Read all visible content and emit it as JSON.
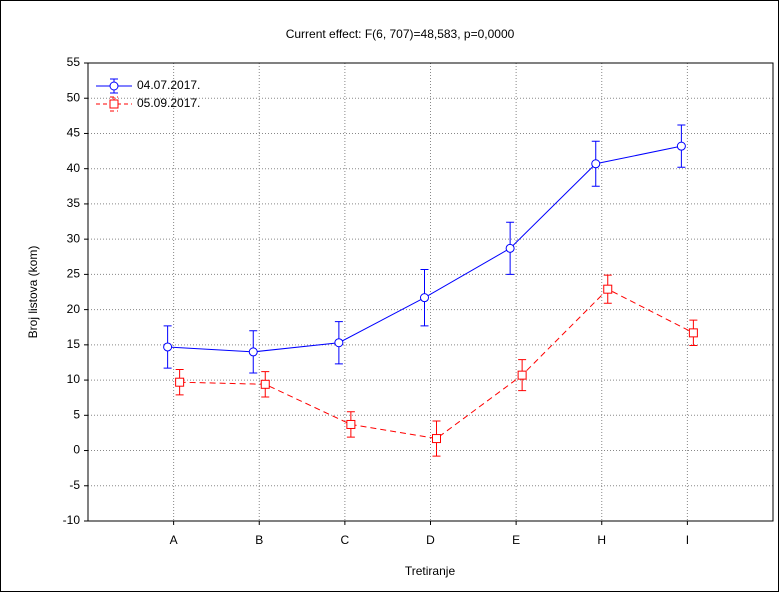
{
  "chart_data": {
    "type": "line",
    "title": "Current effect: F(6, 707)=48,583, p=0,0000",
    "x_label": "Tretiranje",
    "y_label": "Broj listova (kom)",
    "categories": [
      "A",
      "B",
      "C",
      "D",
      "E",
      "H",
      "I"
    ],
    "series": [
      {
        "name": "04.07.2017.",
        "color": "#0000ff",
        "marker": "circle",
        "dashed": false,
        "values": [
          14.7,
          14.0,
          15.3,
          21.7,
          28.7,
          40.7,
          43.2
        ],
        "errors": [
          3.0,
          3.0,
          3.0,
          4.0,
          3.7,
          3.2,
          3.0
        ]
      },
      {
        "name": "05.09.2017.",
        "color": "#ff0000",
        "marker": "square",
        "dashed": true,
        "values": [
          9.7,
          9.4,
          3.7,
          1.7,
          10.7,
          22.9,
          16.7
        ],
        "errors": [
          1.8,
          1.8,
          1.8,
          2.5,
          2.2,
          2.0,
          1.8
        ]
      }
    ],
    "ylim": [
      -10,
      55
    ],
    "yticks": [
      -10,
      -5,
      0,
      5,
      10,
      15,
      20,
      25,
      30,
      35,
      40,
      45,
      50,
      55
    ],
    "grid": true,
    "legend": "top-left"
  }
}
